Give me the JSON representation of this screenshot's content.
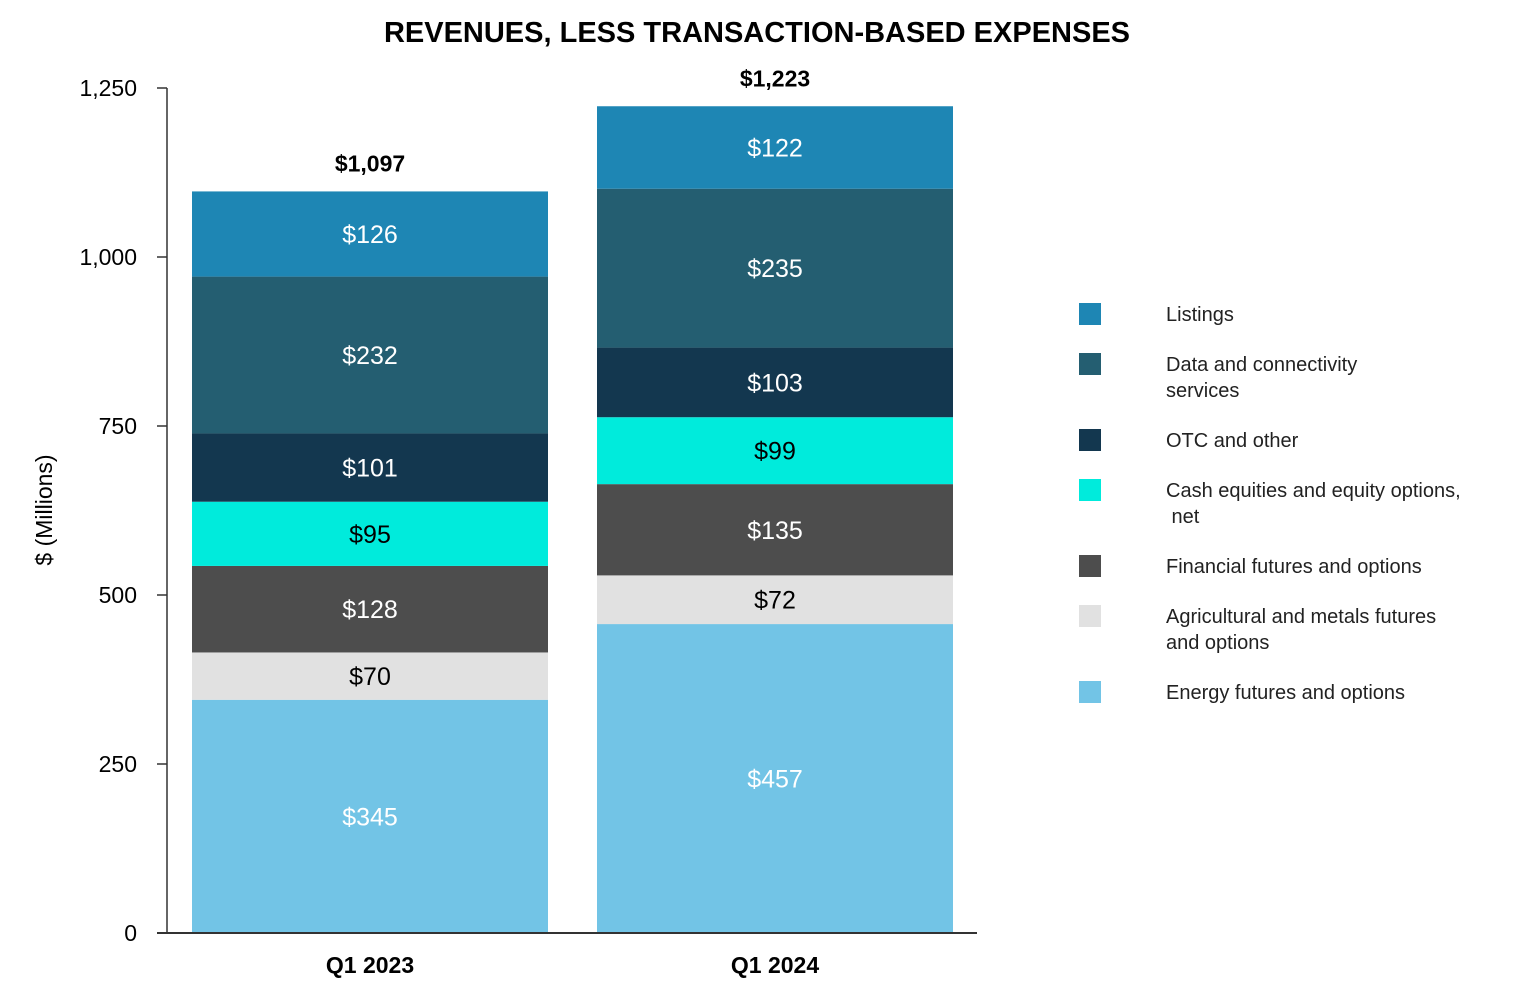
{
  "chart_data": {
    "type": "bar",
    "stacked": true,
    "title": "REVENUES, LESS TRANSACTION-BASED EXPENSES",
    "xlabel": "",
    "ylabel": "$ (Millions)",
    "ylim": [
      0,
      1250
    ],
    "yticks": [
      0,
      250,
      500,
      750,
      1000,
      1250
    ],
    "ytick_labels": [
      "0",
      "250",
      "500",
      "750",
      "1,000",
      "1,250"
    ],
    "categories": [
      "Q1 2023",
      "Q1 2024"
    ],
    "totals": [
      "$1,097",
      "$1,223"
    ],
    "total_values": [
      1097,
      1223
    ],
    "series": [
      {
        "name": "Energy futures and options",
        "color": "#72C4E6",
        "label_color": "#ffffff",
        "values": [
          345,
          457
        ],
        "labels": [
          "$345",
          "$457"
        ]
      },
      {
        "name": "Agricultural and metals futures and options",
        "color": "#E1E1E1",
        "label_color": "#000000",
        "values": [
          70,
          72
        ],
        "labels": [
          "$70",
          "$72"
        ]
      },
      {
        "name": "Financial futures and options",
        "color": "#4D4D4D",
        "label_color": "#ffffff",
        "values": [
          128,
          135
        ],
        "labels": [
          "$128",
          "$135"
        ]
      },
      {
        "name": "Cash equities and equity options, net",
        "color": "#00EBDC",
        "label_color": "#000000",
        "values": [
          95,
          99
        ],
        "labels": [
          "$95",
          "$99"
        ]
      },
      {
        "name": "OTC and other",
        "color": "#13374F",
        "label_color": "#ffffff",
        "values": [
          101,
          103
        ],
        "labels": [
          "$101",
          "$103"
        ]
      },
      {
        "name": "Data and connectivity services",
        "color": "#245E71",
        "label_color": "#ffffff",
        "values": [
          232,
          235
        ],
        "labels": [
          "$232",
          "$235"
        ]
      },
      {
        "name": "Listings",
        "color": "#1E86B4",
        "label_color": "#ffffff",
        "values": [
          126,
          122
        ],
        "labels": [
          "$126",
          "$122"
        ]
      }
    ],
    "legend": {
      "placement": "right",
      "items": [
        {
          "lines": [
            "Listings"
          ],
          "color": "#1E86B4"
        },
        {
          "lines": [
            "Data and connectivity",
            "services"
          ],
          "color": "#245E71"
        },
        {
          "lines": [
            "OTC and other"
          ],
          "color": "#13374F"
        },
        {
          "lines": [
            "Cash equities and equity options,",
            " net"
          ],
          "color": "#00EBDC"
        },
        {
          "lines": [
            "Financial futures and options"
          ],
          "color": "#4D4D4D"
        },
        {
          "lines": [
            "Agricultural and metals futures",
            "and options"
          ],
          "color": "#E1E1E1"
        },
        {
          "lines": [
            "Energy futures and options"
          ],
          "color": "#72C4E6"
        }
      ]
    }
  }
}
